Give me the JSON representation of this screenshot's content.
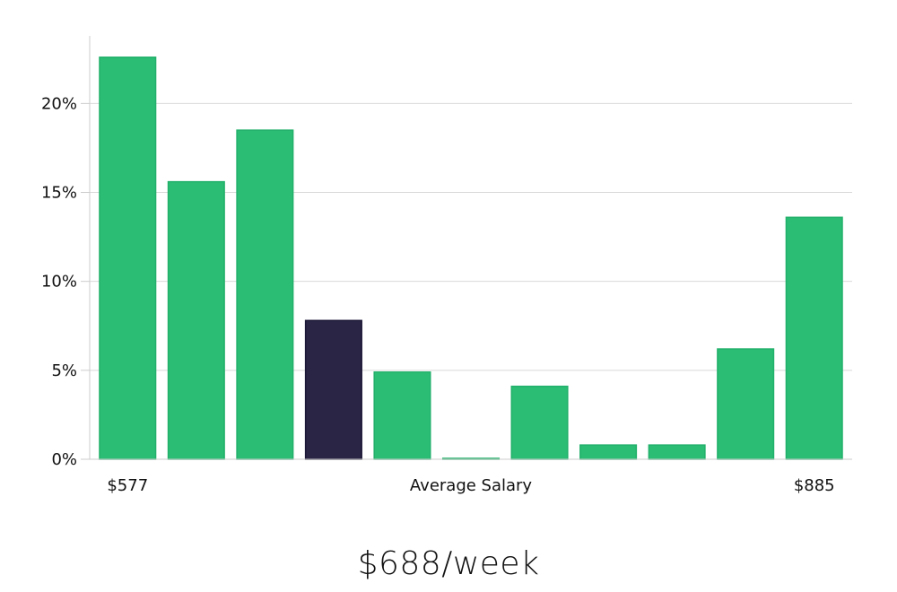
{
  "headline": "$688/week",
  "chart_data": {
    "type": "bar",
    "xlabel": "Average Salary",
    "x_start_label": "$577",
    "x_end_label": "$885",
    "ylim": [
      0,
      23.8
    ],
    "yticks": [
      0,
      5,
      10,
      15,
      20
    ],
    "ytick_labels": [
      "0%",
      "5%",
      "10%",
      "15%",
      "20%"
    ],
    "values": [
      22.6,
      15.6,
      18.5,
      7.8,
      4.9,
      0.05,
      4.1,
      0.8,
      0.8,
      6.2,
      13.6
    ],
    "highlight_index": 3,
    "grid": true,
    "colors": {
      "bar": "#2bbd74",
      "bar_edge": "#22b06a",
      "highlight": "#2a2545",
      "highlight_edge": "#1a1635",
      "grid": "#d9d9d9",
      "axis": "#cccccc"
    }
  }
}
